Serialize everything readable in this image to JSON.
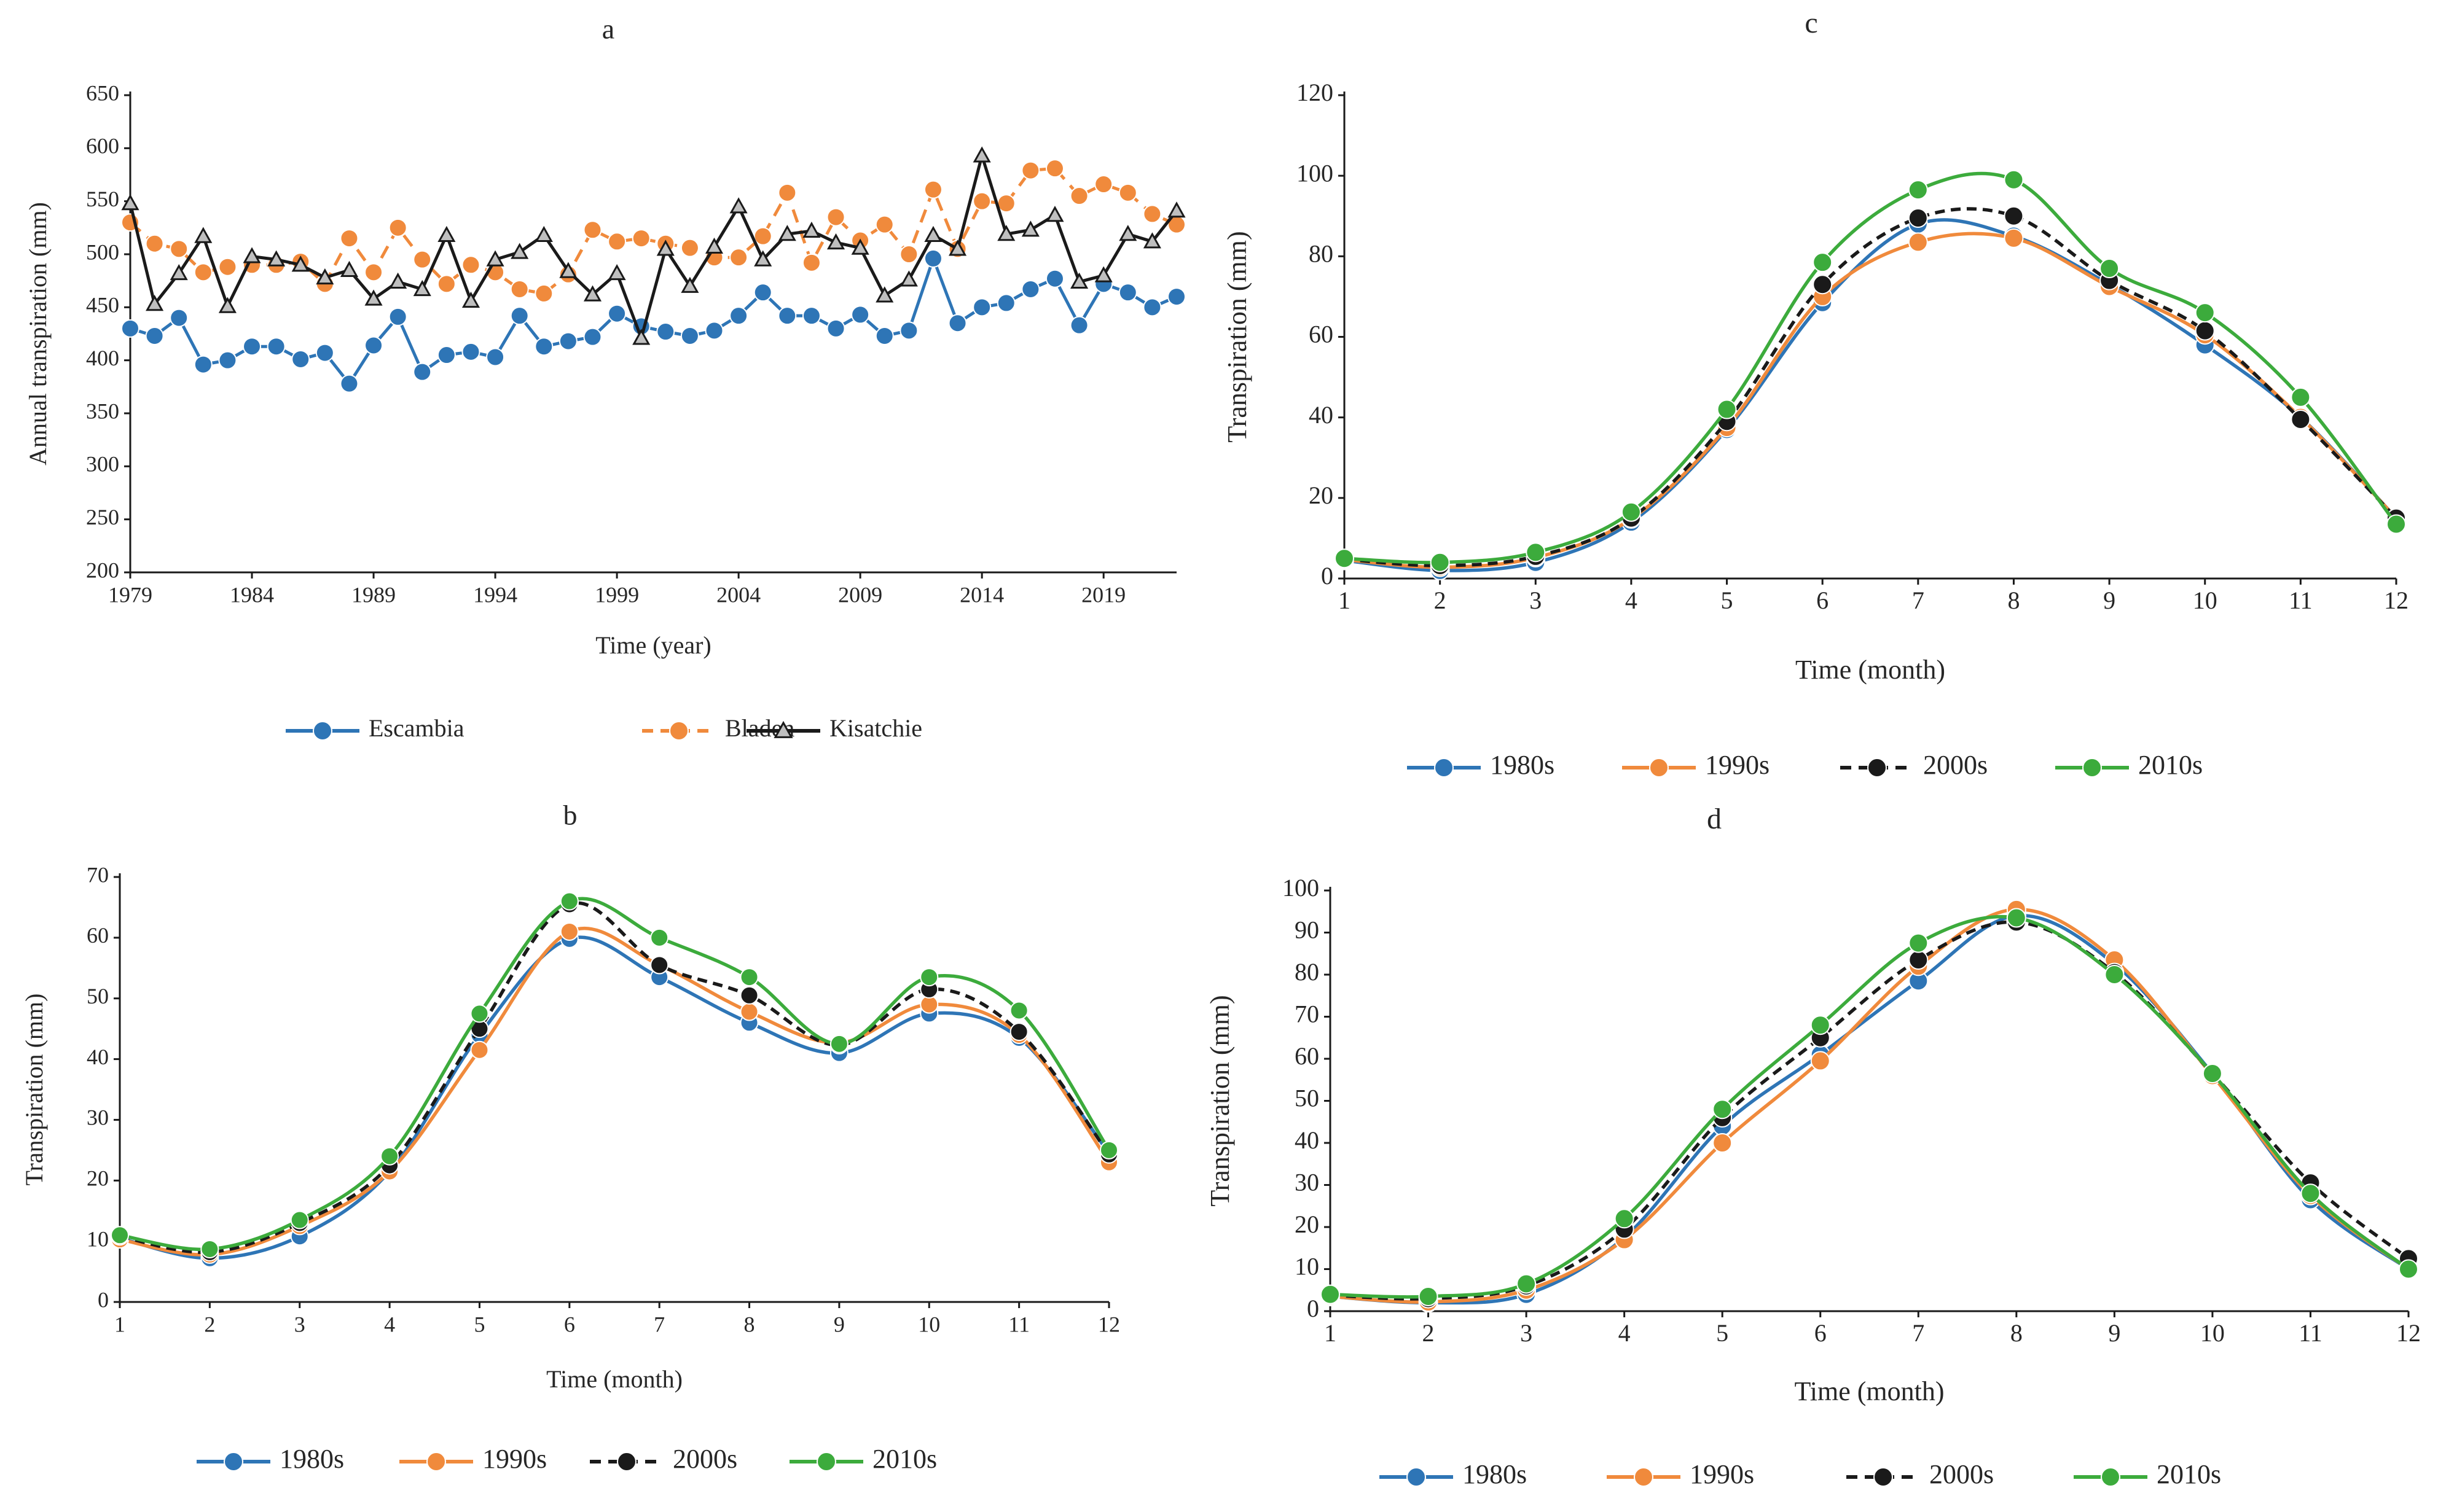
{
  "chart_data": [
    {
      "id": "a",
      "panel_label": "a",
      "type": "line",
      "xlabel": "Time (year)",
      "ylabel": "Annual transpiration (mm)",
      "xlim": [
        1979,
        2022
      ],
      "ylim": [
        200,
        650
      ],
      "xticks": [
        1979,
        1984,
        1989,
        1994,
        1999,
        2004,
        2009,
        2014,
        2019
      ],
      "yticks": [
        200,
        250,
        300,
        350,
        400,
        450,
        500,
        550,
        600,
        650
      ],
      "x": [
        1979,
        1980,
        1981,
        1982,
        1983,
        1984,
        1985,
        1986,
        1987,
        1988,
        1989,
        1990,
        1991,
        1992,
        1993,
        1994,
        1995,
        1996,
        1997,
        1998,
        1999,
        2000,
        2001,
        2002,
        2003,
        2004,
        2005,
        2006,
        2007,
        2008,
        2009,
        2010,
        2011,
        2012,
        2013,
        2014,
        2015,
        2016,
        2017,
        2018,
        2019,
        2020,
        2021,
        2022
      ],
      "series": [
        {
          "name": "Escambia",
          "color": "#2e75b6",
          "marker": "circle",
          "dash": "solid",
          "values": [
            430,
            423,
            440,
            396,
            400,
            413,
            413,
            401,
            407,
            378,
            414,
            441,
            389,
            405,
            408,
            403,
            442,
            413,
            418,
            422,
            444,
            432,
            427,
            423,
            428,
            442,
            464,
            442,
            442,
            430,
            443,
            423,
            428,
            496,
            435,
            450,
            454,
            467,
            477,
            433,
            472,
            464,
            450,
            460
          ]
        },
        {
          "name": "Bladen",
          "color": "#f08a3c",
          "marker": "circle",
          "dash": "dashed",
          "values": [
            530,
            510,
            505,
            483,
            488,
            490,
            490,
            493,
            472,
            515,
            483,
            525,
            495,
            472,
            490,
            483,
            467,
            463,
            481,
            523,
            512,
            515,
            510,
            506,
            497,
            497,
            517,
            558,
            492,
            535,
            513,
            528,
            500,
            561,
            505,
            550,
            548,
            579,
            581,
            555,
            566,
            558,
            538,
            528
          ]
        },
        {
          "name": "Kisatchie",
          "color": "#1a1a1a",
          "marker": "triangle",
          "dash": "solid",
          "values": [
            548,
            453,
            482,
            517,
            451,
            498,
            495,
            490,
            478,
            485,
            458,
            474,
            467,
            518,
            456,
            495,
            502,
            518,
            484,
            462,
            482,
            421,
            505,
            470,
            507,
            545,
            495,
            519,
            522,
            511,
            506,
            461,
            476,
            518,
            505,
            593,
            519,
            523,
            537,
            474,
            480,
            519,
            512,
            541
          ]
        }
      ],
      "legend": [
        "Escambia",
        "Bladen",
        "Kisatchie"
      ],
      "legend_position": "bottom"
    },
    {
      "id": "b",
      "panel_label": "b",
      "type": "line",
      "xlabel": "Time (month)",
      "ylabel": "Transpiration (mm)",
      "xlim": [
        1,
        12
      ],
      "ylim": [
        0,
        70
      ],
      "xticks": [
        1,
        2,
        3,
        4,
        5,
        6,
        7,
        8,
        9,
        10,
        11,
        12
      ],
      "yticks": [
        0,
        10,
        20,
        30,
        40,
        50,
        60,
        70
      ],
      "x": [
        1,
        2,
        3,
        4,
        5,
        6,
        7,
        8,
        9,
        10,
        11,
        12
      ],
      "series": [
        {
          "name": "1980s",
          "color": "#2e75b6",
          "marker": "circle",
          "dash": "solid",
          "values": [
            10.5,
            7.2,
            10.8,
            21.5,
            44,
            59.8,
            53.5,
            46,
            41,
            47.5,
            43.5,
            24.5
          ]
        },
        {
          "name": "1990s",
          "color": "#f08a3c",
          "marker": "circle",
          "dash": "solid",
          "values": [
            10.3,
            7.8,
            12.5,
            21.5,
            41.5,
            61,
            55.5,
            47.8,
            42.7,
            49,
            44,
            23
          ]
        },
        {
          "name": "2000s",
          "color": "#1a1a1a",
          "marker": "circle",
          "dash": "dashed",
          "values": [
            10.8,
            8.2,
            13,
            22.5,
            45,
            65.5,
            55.5,
            50.5,
            42.3,
            51.5,
            44.5,
            24.3
          ]
        },
        {
          "name": "2010s",
          "color": "#3cab3c",
          "marker": "circle",
          "dash": "solid",
          "values": [
            11,
            8.7,
            13.5,
            24,
            47.5,
            66,
            60,
            53.5,
            42.5,
            53.5,
            48,
            25
          ]
        }
      ],
      "legend": [
        "1980s",
        "1990s",
        "2000s",
        "2010s"
      ],
      "legend_position": "bottom"
    },
    {
      "id": "c",
      "panel_label": "c",
      "type": "line",
      "xlabel": "Time (month)",
      "ylabel": "Transpiration (mm)",
      "xlim": [
        1,
        12
      ],
      "ylim": [
        0,
        120
      ],
      "xticks": [
        1,
        2,
        3,
        4,
        5,
        6,
        7,
        8,
        9,
        10,
        11,
        12
      ],
      "yticks": [
        0,
        20,
        40,
        60,
        80,
        100,
        120
      ],
      "x": [
        1,
        2,
        3,
        4,
        5,
        6,
        7,
        8,
        9,
        10,
        11,
        12
      ],
      "series": [
        {
          "name": "1980s",
          "color": "#2e75b6",
          "marker": "circle",
          "dash": "solid",
          "values": [
            4.5,
            2,
            4,
            14,
            37,
            68.5,
            88,
            85,
            73,
            58,
            40,
            15
          ]
        },
        {
          "name": "1990s",
          "color": "#f08a3c",
          "marker": "circle",
          "dash": "solid",
          "values": [
            4.7,
            2.8,
            5.2,
            14.8,
            37.5,
            70,
            83.5,
            84.5,
            72.5,
            60.5,
            40,
            15
          ]
        },
        {
          "name": "2000s",
          "color": "#1a1a1a",
          "marker": "circle",
          "dash": "dashed",
          "values": [
            4.8,
            3.2,
            5.5,
            15,
            39,
            73,
            89.5,
            90,
            74,
            61.5,
            39.5,
            15
          ]
        },
        {
          "name": "2010s",
          "color": "#3cab3c",
          "marker": "circle",
          "dash": "solid",
          "values": [
            5,
            4,
            6.5,
            16.5,
            42,
            78.5,
            96.5,
            99,
            77,
            66,
            45,
            13.5
          ]
        }
      ],
      "legend": [
        "1980s",
        "1990s",
        "2000s",
        "2010s"
      ],
      "legend_position": "bottom"
    },
    {
      "id": "d",
      "panel_label": "d",
      "type": "line",
      "xlabel": "Time (month)",
      "ylabel": "Transpiration (mm)",
      "xlim": [
        1,
        12
      ],
      "ylim": [
        0,
        100
      ],
      "xticks": [
        1,
        2,
        3,
        4,
        5,
        6,
        7,
        8,
        9,
        10,
        11,
        12
      ],
      "yticks": [
        0,
        10,
        20,
        30,
        40,
        50,
        60,
        70,
        80,
        90,
        100
      ],
      "x": [
        1,
        2,
        3,
        4,
        5,
        6,
        7,
        8,
        9,
        10,
        11,
        12
      ],
      "series": [
        {
          "name": "1980s",
          "color": "#2e75b6",
          "marker": "circle",
          "dash": "solid",
          "values": [
            3.5,
            2,
            4,
            17.5,
            44,
            61,
            78.5,
            94,
            82.5,
            56.5,
            26.5,
            10
          ]
        },
        {
          "name": "1990s",
          "color": "#f08a3c",
          "marker": "circle",
          "dash": "solid",
          "values": [
            3.5,
            2.2,
            5,
            17,
            40,
            59.5,
            82,
            95.5,
            83.5,
            56,
            27.5,
            10
          ]
        },
        {
          "name": "2000s",
          "color": "#1a1a1a",
          "marker": "circle",
          "dash": "dashed",
          "values": [
            3.8,
            3,
            6,
            19.5,
            46,
            65,
            83.5,
            92.5,
            80.5,
            56.5,
            30.5,
            12.5
          ]
        },
        {
          "name": "2010s",
          "color": "#3cab3c",
          "marker": "circle",
          "dash": "solid",
          "values": [
            4,
            3.5,
            6.5,
            22,
            48,
            68,
            87.5,
            93.5,
            80,
            56.5,
            28,
            10
          ]
        }
      ],
      "legend": [
        "1980s",
        "1990s",
        "2000s",
        "2010s"
      ],
      "legend_position": "bottom"
    }
  ]
}
